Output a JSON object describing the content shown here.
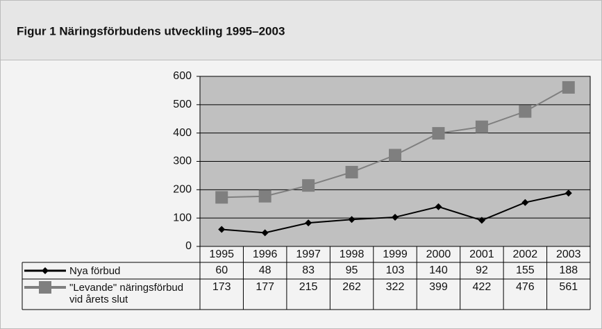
{
  "chart_data": {
    "type": "line",
    "title": "Figur 1  Näringsförbudens utveckling 1995–2003",
    "categories": [
      "1995",
      "1996",
      "1997",
      "1998",
      "1999",
      "2000",
      "2001",
      "2002",
      "2003"
    ],
    "series": [
      {
        "name": "Nya förbud",
        "color": "#000000",
        "marker": "diamond",
        "values": [
          60,
          48,
          83,
          95,
          103,
          140,
          92,
          155,
          188
        ]
      },
      {
        "name": "\"Levande\" näringsförbud vid årets slut",
        "color": "#7f7f7f",
        "marker": "square",
        "values": [
          173,
          177,
          215,
          262,
          322,
          399,
          422,
          476,
          561
        ]
      }
    ],
    "ylim": [
      0,
      600
    ],
    "yticks": [
      0,
      100,
      200,
      300,
      400,
      500,
      600
    ],
    "grid": true,
    "plot_background": "#c0c0c0"
  }
}
